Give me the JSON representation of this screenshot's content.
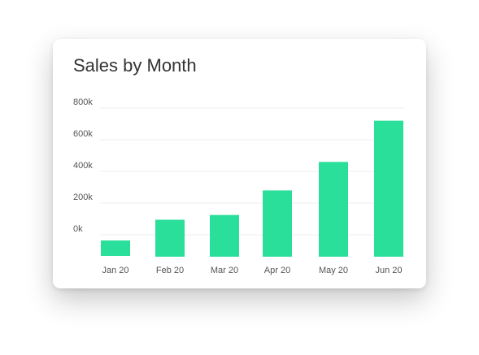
{
  "chart_data": {
    "type": "bar",
    "title": "Sales by Month",
    "categories": [
      "Jan 20",
      "Feb 20",
      "Mar 20",
      "Apr 20",
      "May 20",
      "Jun 20"
    ],
    "values": [
      -55000,
      95000,
      125000,
      280000,
      460000,
      720000
    ],
    "y_ticks": [
      "0k",
      "200k",
      "400k",
      "600k",
      "800k"
    ],
    "ylim": [
      -130000,
      800000
    ],
    "grid": true,
    "bar_color": "#2adf9a",
    "grid_color": "#eeeeee",
    "xlabel": "",
    "ylabel": ""
  }
}
